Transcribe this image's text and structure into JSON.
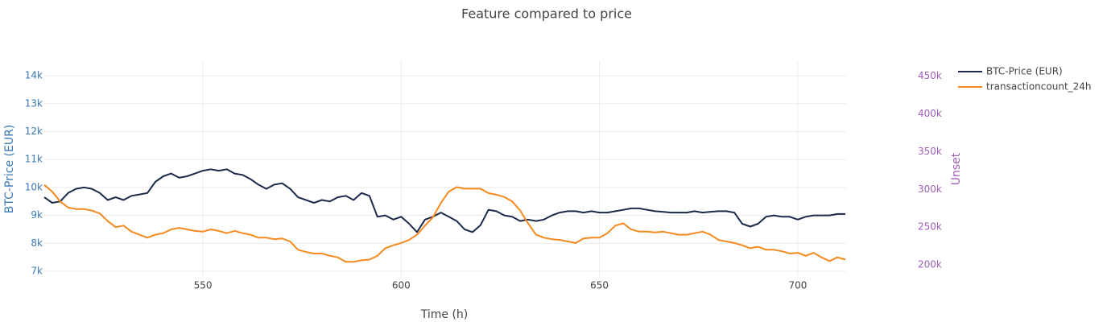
{
  "chart_data": {
    "type": "line",
    "title": "Feature compared to price",
    "xlabel": "Time (h)",
    "ylabel": "BTC-Price (EUR)",
    "y2label": "Unset",
    "x": [
      510,
      512,
      514,
      516,
      518,
      520,
      522,
      524,
      526,
      528,
      530,
      532,
      534,
      536,
      538,
      540,
      542,
      544,
      546,
      548,
      550,
      552,
      554,
      556,
      558,
      560,
      562,
      564,
      566,
      568,
      570,
      572,
      574,
      576,
      578,
      580,
      582,
      584,
      586,
      588,
      590,
      592,
      594,
      596,
      598,
      600,
      602,
      604,
      606,
      608,
      610,
      612,
      614,
      616,
      618,
      620,
      622,
      624,
      626,
      628,
      630,
      632,
      634,
      636,
      638,
      640,
      642,
      644,
      646,
      648,
      650,
      652,
      654,
      656,
      658,
      660,
      662,
      664,
      666,
      668,
      670,
      672,
      674,
      676,
      678,
      680,
      682,
      684,
      686,
      688,
      690,
      692,
      694,
      696,
      698,
      700,
      702,
      704,
      706,
      708,
      710,
      712
    ],
    "series": [
      {
        "name": "BTC-Price (EUR)",
        "color": "#1b2a4a",
        "values": [
          9650,
          9450,
          9500,
          9800,
          9950,
          10000,
          9950,
          9800,
          9550,
          9650,
          9550,
          9700,
          9750,
          9800,
          10200,
          10400,
          10500,
          10350,
          10400,
          10500,
          10600,
          10650,
          10600,
          10650,
          10500,
          10450,
          10300,
          10100,
          9950,
          10100,
          10150,
          9950,
          9650,
          9550,
          9450,
          9550,
          9500,
          9650,
          9700,
          9550,
          9800,
          9700,
          8950,
          9000,
          8850,
          8950,
          8700,
          8400,
          8850,
          8950,
          9100,
          8950,
          8800,
          8500,
          8400,
          8650,
          9200,
          9150,
          9000,
          8950,
          8800,
          8850,
          8800,
          8850,
          9000,
          9100,
          9150,
          9150,
          9100,
          9150,
          9100,
          9100,
          9150,
          9200,
          9250,
          9250,
          9200,
          9150,
          9130,
          9100,
          9100,
          9100,
          9150,
          9100,
          9130,
          9150,
          9150,
          9100,
          8700,
          8600,
          8700,
          8950,
          9000,
          8950,
          8950,
          8850,
          8950,
          9000,
          9000,
          9000,
          9050,
          9050
        ]
      },
      {
        "name": "transactioncount_24h",
        "color": "#f5891e",
        "axis": "y2",
        "values": [
          306000,
          297000,
          284000,
          276000,
          274000,
          274000,
          272000,
          268000,
          258000,
          250000,
          252000,
          244000,
          240000,
          236000,
          240000,
          242000,
          247000,
          249000,
          247000,
          245000,
          244000,
          247000,
          245000,
          242000,
          245000,
          242000,
          240000,
          236000,
          236000,
          234000,
          235000,
          231000,
          220000,
          217000,
          215000,
          215000,
          212000,
          210000,
          204000,
          204000,
          206000,
          207000,
          212000,
          222000,
          226000,
          229000,
          233000,
          240000,
          252000,
          263000,
          282000,
          297000,
          303000,
          301000,
          301000,
          301000,
          295000,
          293000,
          290000,
          284000,
          272000,
          255000,
          240000,
          236000,
          234000,
          233000,
          231000,
          229000,
          235000,
          236000,
          236000,
          242000,
          252000,
          255000,
          247000,
          244000,
          244000,
          243000,
          244000,
          242000,
          240000,
          240000,
          242000,
          244000,
          240000,
          233000,
          231000,
          229000,
          226000,
          222000,
          224000,
          220000,
          220000,
          218000,
          215000,
          216000,
          212000,
          216000,
          210000,
          205000,
          210000,
          207000
        ]
      }
    ],
    "xlim": [
      510,
      712
    ],
    "xticks": [
      550,
      600,
      650,
      700
    ],
    "ylim": [
      6770,
      14550
    ],
    "yticks": [
      {
        "value": 7000,
        "label": "7k"
      },
      {
        "value": 8000,
        "label": "8k"
      },
      {
        "value": 9000,
        "label": "9k"
      },
      {
        "value": 10000,
        "label": "10k"
      },
      {
        "value": 11000,
        "label": "11k"
      },
      {
        "value": 12000,
        "label": "12k"
      },
      {
        "value": 13000,
        "label": "13k"
      },
      {
        "value": 14000,
        "label": "14k"
      }
    ],
    "y2lim": [
      183000,
      471000
    ],
    "y2ticks": [
      {
        "value": 200000,
        "label": "200k"
      },
      {
        "value": 250000,
        "label": "250k"
      },
      {
        "value": 300000,
        "label": "300k"
      },
      {
        "value": 350000,
        "label": "350k"
      },
      {
        "value": 400000,
        "label": "400k"
      },
      {
        "value": 450000,
        "label": "450k"
      }
    ],
    "y_color": "#3a78b5",
    "y2_color": "#a05fb8",
    "grid": true,
    "legend": "top-right"
  }
}
